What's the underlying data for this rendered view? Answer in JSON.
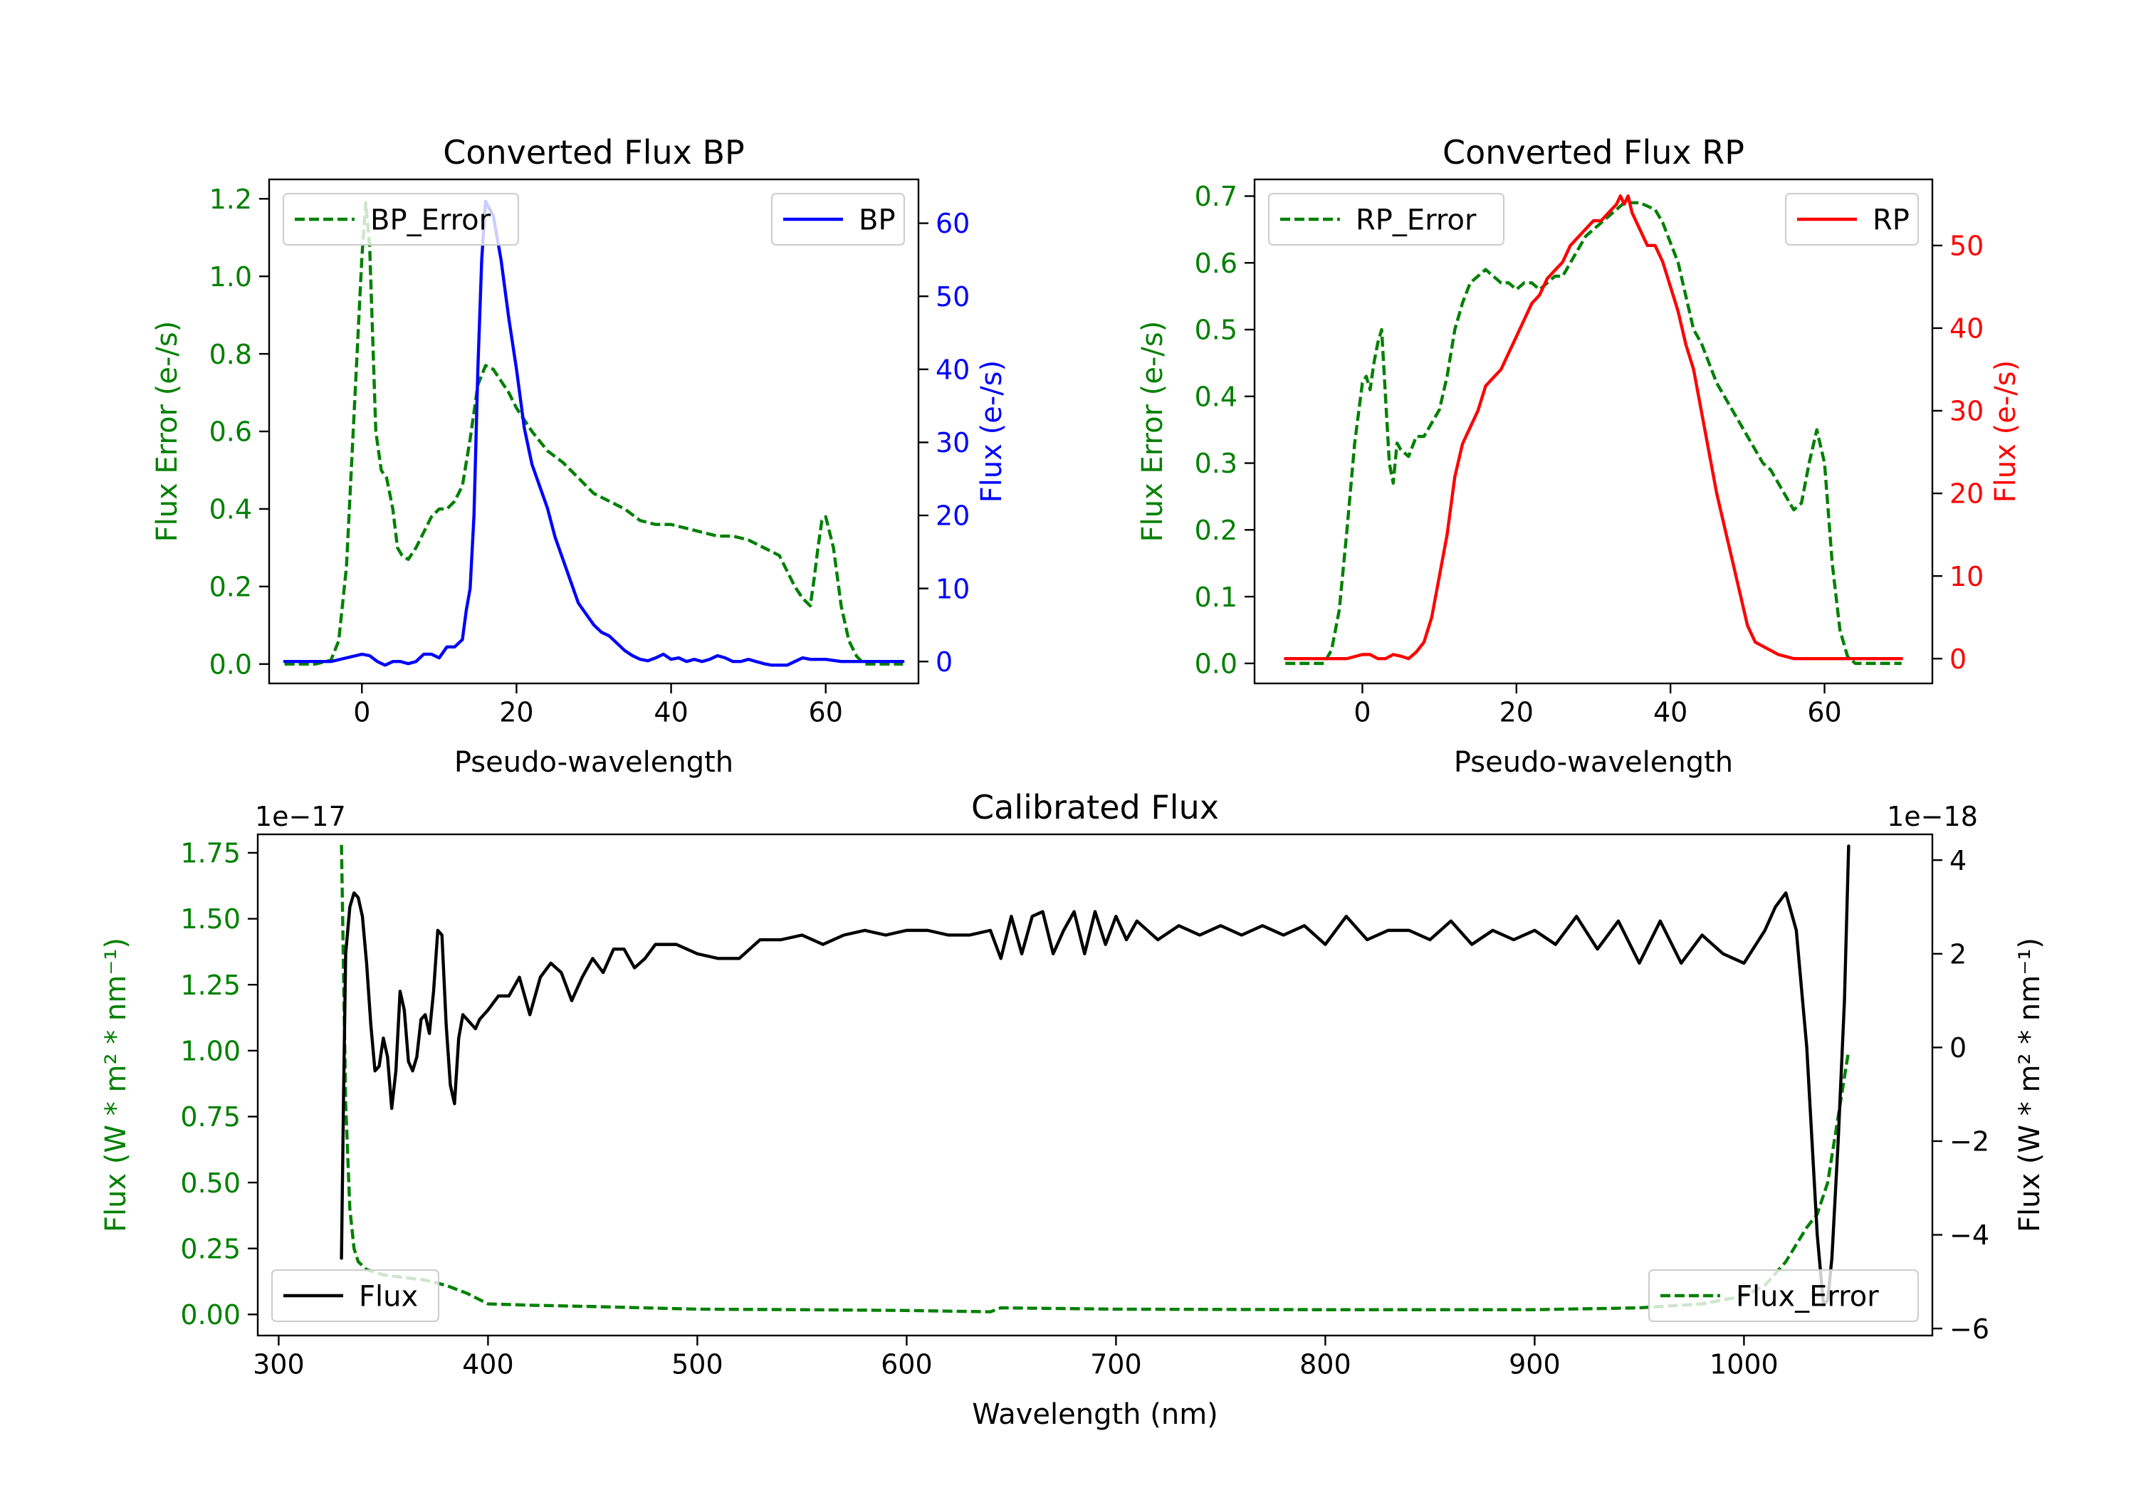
{
  "colors": {
    "error": "#008000",
    "bp": "#0000ff",
    "rp": "#ff0000",
    "flux": "#000000",
    "axis": "#000000"
  },
  "chart_data": [
    {
      "id": "bp",
      "type": "line",
      "title": "Converted Flux BP",
      "xlabel": "Pseudo-wavelength",
      "ylabel_left": "Flux Error (e-/s)",
      "ylabel_right": "Flux (e-/s)",
      "xlim": [
        -12,
        72
      ],
      "ylim_left": [
        -0.05,
        1.25
      ],
      "ylim_right": [
        -3,
        66
      ],
      "xticks": [
        0,
        20,
        40,
        60
      ],
      "xtick_labels": [
        "0",
        "20",
        "40",
        "60"
      ],
      "yticks_left": [
        0,
        0.2,
        0.4,
        0.6,
        0.8,
        1.0,
        1.2
      ],
      "ytick_labels_left": [
        "0.0",
        "0.2",
        "0.4",
        "0.6",
        "0.8",
        "1.0",
        "1.2"
      ],
      "yticks_right": [
        0,
        10,
        20,
        30,
        40,
        50,
        60
      ],
      "ytick_labels_right": [
        "0",
        "10",
        "20",
        "30",
        "40",
        "50",
        "60"
      ],
      "legend_left": "BP_Error",
      "legend_right": "BP",
      "legend_left_loc": "upper left",
      "legend_right_loc": "upper right",
      "series": [
        {
          "name": "BP_Error",
          "axis": "left",
          "style": "dashed",
          "color_key": "error",
          "x": [
            -10,
            -6,
            -4,
            -3,
            -2,
            -1,
            0,
            0.5,
            1,
            1.8,
            2.5,
            3.2,
            4,
            4.6,
            5.2,
            6,
            7,
            8,
            9,
            10,
            11,
            12,
            13,
            14,
            15,
            16,
            17,
            18,
            19,
            20,
            22,
            24,
            26,
            28,
            30,
            32,
            34,
            36,
            38,
            40,
            42,
            44,
            46,
            48,
            50,
            52,
            54,
            55,
            56,
            57,
            58,
            58.5,
            59,
            59.5,
            60,
            61,
            62,
            63,
            64,
            65,
            66,
            70
          ],
          "y": [
            0.0,
            0.0,
            0.01,
            0.06,
            0.25,
            0.65,
            1.05,
            1.19,
            1.08,
            0.6,
            0.5,
            0.48,
            0.4,
            0.3,
            0.28,
            0.27,
            0.3,
            0.34,
            0.38,
            0.4,
            0.4,
            0.42,
            0.46,
            0.58,
            0.72,
            0.77,
            0.76,
            0.73,
            0.7,
            0.66,
            0.6,
            0.55,
            0.52,
            0.48,
            0.44,
            0.42,
            0.4,
            0.37,
            0.36,
            0.36,
            0.35,
            0.34,
            0.33,
            0.33,
            0.32,
            0.3,
            0.28,
            0.24,
            0.2,
            0.17,
            0.15,
            0.22,
            0.3,
            0.37,
            0.38,
            0.3,
            0.15,
            0.06,
            0.02,
            0.0,
            0.0,
            0.0
          ]
        },
        {
          "name": "BP",
          "axis": "right",
          "style": "solid",
          "color_key": "bp",
          "x": [
            -10,
            -4,
            -2,
            0,
            1,
            2,
            3,
            4,
            5,
            6,
            7,
            8,
            9,
            10,
            11,
            12,
            13,
            13.5,
            14,
            14.5,
            15,
            15.5,
            16,
            17,
            18,
            19,
            20,
            21,
            22,
            23,
            24,
            25,
            26,
            27,
            28,
            29,
            30,
            31,
            32,
            33,
            34,
            35,
            36,
            37,
            38,
            39,
            40,
            41,
            42,
            43,
            44,
            45,
            46,
            47,
            48,
            49,
            50,
            51,
            52,
            53,
            54,
            55,
            56,
            57,
            58,
            60,
            62,
            64,
            66,
            70
          ],
          "y": [
            0,
            0,
            0.5,
            1,
            0.8,
            0,
            -0.5,
            0,
            0,
            -0.3,
            0,
            1,
            1,
            0.5,
            2,
            2,
            3,
            7,
            10,
            20,
            40,
            55,
            63,
            61,
            55,
            47,
            40,
            32,
            27,
            24,
            21,
            17,
            14,
            11,
            8,
            6.5,
            5,
            4,
            3.5,
            2.5,
            1.5,
            0.8,
            0.3,
            0.1,
            0.5,
            1,
            0.3,
            0.5,
            0,
            0.3,
            0,
            0.3,
            0.8,
            0.5,
            0,
            0,
            0.3,
            0,
            -0.3,
            -0.5,
            -0.5,
            -0.5,
            0,
            0.5,
            0.3,
            0.3,
            0,
            0,
            0,
            0
          ]
        }
      ]
    },
    {
      "id": "rp",
      "type": "line",
      "title": "Converted Flux RP",
      "xlabel": "Pseudo-wavelength",
      "ylabel_left": "Flux Error (e-/s)",
      "ylabel_right": "Flux (e-/s)",
      "xlim": [
        -14,
        74
      ],
      "ylim_left": [
        -0.03,
        0.725
      ],
      "ylim_right": [
        -3,
        58
      ],
      "xticks": [
        0,
        20,
        40,
        60
      ],
      "xtick_labels": [
        "0",
        "20",
        "40",
        "60"
      ],
      "yticks_left": [
        0,
        0.1,
        0.2,
        0.3,
        0.4,
        0.5,
        0.6,
        0.7
      ],
      "ytick_labels_left": [
        "0.0",
        "0.1",
        "0.2",
        "0.3",
        "0.4",
        "0.5",
        "0.6",
        "0.7"
      ],
      "yticks_right": [
        0,
        10,
        20,
        30,
        40,
        50
      ],
      "ytick_labels_right": [
        "0",
        "10",
        "20",
        "30",
        "40",
        "50"
      ],
      "legend_left": "RP_Error",
      "legend_right": "RP",
      "legend_left_loc": "upper left",
      "legend_right_loc": "upper right",
      "series": [
        {
          "name": "RP_Error",
          "axis": "left",
          "style": "dashed",
          "color_key": "error",
          "x": [
            -10,
            -5,
            -4,
            -3,
            -2,
            -1,
            0,
            0.5,
            1,
            1.5,
            2,
            2.5,
            3,
            3.5,
            4,
            4.5,
            5,
            6,
            7,
            8,
            9,
            10,
            11,
            12,
            13,
            14,
            15,
            16,
            17,
            18,
            19,
            20,
            21,
            22,
            23,
            24,
            25,
            26,
            27,
            28,
            29,
            30,
            31,
            32,
            33,
            34,
            35,
            36,
            37,
            38,
            39,
            40,
            41,
            42,
            43,
            44,
            45,
            46,
            47,
            48,
            49,
            50,
            51,
            52,
            53,
            54,
            55,
            56,
            57,
            58,
            59,
            60,
            61,
            62,
            63,
            64,
            70
          ],
          "y": [
            0.0,
            0.0,
            0.02,
            0.08,
            0.2,
            0.33,
            0.42,
            0.43,
            0.41,
            0.45,
            0.48,
            0.5,
            0.4,
            0.3,
            0.27,
            0.33,
            0.32,
            0.31,
            0.34,
            0.34,
            0.36,
            0.38,
            0.43,
            0.5,
            0.54,
            0.57,
            0.58,
            0.59,
            0.58,
            0.57,
            0.57,
            0.56,
            0.57,
            0.57,
            0.56,
            0.57,
            0.58,
            0.58,
            0.6,
            0.62,
            0.64,
            0.65,
            0.66,
            0.67,
            0.68,
            0.69,
            0.69,
            0.69,
            0.685,
            0.68,
            0.66,
            0.63,
            0.6,
            0.55,
            0.5,
            0.48,
            0.45,
            0.42,
            0.4,
            0.38,
            0.36,
            0.34,
            0.32,
            0.3,
            0.29,
            0.27,
            0.25,
            0.23,
            0.24,
            0.3,
            0.35,
            0.3,
            0.15,
            0.05,
            0.01,
            0.0,
            0.0
          ]
        },
        {
          "name": "RP",
          "axis": "right",
          "style": "solid",
          "color_key": "rp",
          "x": [
            -10,
            -4,
            -2,
            0,
            1,
            2,
            3,
            4,
            5,
            6,
            7,
            8,
            9,
            10,
            11,
            12,
            13,
            14,
            15,
            16,
            17,
            18,
            19,
            20,
            21,
            22,
            23,
            24,
            25,
            26,
            27,
            28,
            29,
            30,
            31,
            32,
            33,
            33.5,
            34,
            34.5,
            35,
            36,
            37,
            38,
            39,
            40,
            41,
            42,
            43,
            44,
            45,
            46,
            47,
            48,
            49,
            50,
            51,
            52,
            53,
            54,
            56,
            58,
            60,
            62,
            66,
            70
          ],
          "y": [
            0,
            0,
            0,
            0.5,
            0.5,
            0,
            0,
            0.5,
            0.3,
            0,
            0.8,
            2,
            5,
            10,
            15,
            22,
            26,
            28,
            30,
            33,
            34,
            35,
            37,
            39,
            41,
            43,
            44,
            46,
            47,
            48,
            50,
            51,
            52,
            53,
            53,
            54,
            55,
            56,
            55,
            56,
            54,
            52,
            50,
            50,
            48,
            45,
            42,
            38,
            35,
            30,
            25,
            20,
            16,
            12,
            8,
            4,
            2,
            1.5,
            1,
            0.5,
            0,
            0,
            0,
            0,
            0,
            0
          ]
        }
      ]
    },
    {
      "id": "calibrated",
      "type": "line",
      "title": "Calibrated Flux",
      "xlabel": "Wavelength (nm)",
      "ylabel_left": "Flux (W * m² * nm⁻¹)",
      "ylabel_right": "Flux (W * m² * nm⁻¹)",
      "offset_left": "1e−17",
      "offset_right": "1e−18",
      "xlim": [
        290,
        1090
      ],
      "ylim_left": [
        -0.08,
        1.82
      ],
      "ylim_right": [
        -6.15,
        4.55
      ],
      "xticks": [
        300,
        400,
        500,
        600,
        700,
        800,
        900,
        1000
      ],
      "xtick_labels": [
        "300",
        "400",
        "500",
        "600",
        "700",
        "800",
        "900",
        "1000"
      ],
      "yticks_left": [
        0,
        0.25,
        0.5,
        0.75,
        1.0,
        1.25,
        1.5,
        1.75
      ],
      "ytick_labels_left": [
        "0.00",
        "0.25",
        "0.50",
        "0.75",
        "1.00",
        "1.25",
        "1.50",
        "1.75"
      ],
      "yticks_right": [
        -6,
        -4,
        -2,
        0,
        2,
        4
      ],
      "ytick_labels_right": [
        "−6",
        "−4",
        "−2",
        "0",
        "2",
        "4"
      ],
      "legend_left": "Flux",
      "legend_right": "Flux_Error",
      "legend_left_loc": "lower left",
      "legend_right_loc": "lower right",
      "series": [
        {
          "name": "Flux_Error",
          "axis": "left",
          "style": "dashed",
          "color_key": "error",
          "x": [
            330,
            332,
            334,
            336,
            338,
            342,
            350,
            360,
            370,
            380,
            390,
            400,
            420,
            450,
            500,
            550,
            600,
            640,
            645,
            700,
            800,
            900,
            950,
            980,
            1000,
            1010,
            1020,
            1030,
            1035,
            1040,
            1045,
            1050
          ],
          "y": [
            1.78,
            0.8,
            0.4,
            0.25,
            0.2,
            0.17,
            0.15,
            0.14,
            0.13,
            0.11,
            0.08,
            0.04,
            0.035,
            0.03,
            0.02,
            0.018,
            0.015,
            0.01,
            0.025,
            0.02,
            0.018,
            0.018,
            0.025,
            0.04,
            0.07,
            0.11,
            0.2,
            0.33,
            0.38,
            0.5,
            0.75,
            1.0
          ]
        },
        {
          "name": "Flux",
          "axis": "right",
          "style": "solid",
          "color_key": "flux",
          "x": [
            330,
            331,
            332,
            333,
            334,
            336,
            338,
            340,
            342,
            344,
            346,
            348,
            350,
            352,
            354,
            356,
            358,
            360,
            362,
            364,
            366,
            368,
            370,
            372,
            374,
            376,
            378,
            380,
            382,
            384,
            386,
            388,
            390,
            392,
            394,
            396,
            398,
            400,
            405,
            410,
            415,
            420,
            425,
            430,
            435,
            440,
            445,
            450,
            455,
            460,
            465,
            470,
            475,
            480,
            490,
            500,
            510,
            520,
            530,
            540,
            550,
            560,
            570,
            580,
            590,
            600,
            610,
            620,
            630,
            640,
            645,
            650,
            655,
            660,
            665,
            670,
            675,
            680,
            685,
            690,
            695,
            700,
            705,
            710,
            720,
            730,
            740,
            750,
            760,
            770,
            780,
            790,
            800,
            810,
            820,
            830,
            840,
            850,
            860,
            870,
            880,
            890,
            900,
            910,
            920,
            930,
            940,
            950,
            960,
            970,
            980,
            990,
            1000,
            1010,
            1015,
            1020,
            1025,
            1030,
            1035,
            1038,
            1040,
            1042,
            1045,
            1048,
            1050
          ],
          "y": [
            -4.5,
            -1,
            2,
            2.5,
            3,
            3.3,
            3.2,
            2.8,
            1.8,
            0.5,
            -0.5,
            -0.4,
            0.2,
            -0.2,
            -1.3,
            -0.5,
            1.2,
            0.8,
            -0.3,
            -0.5,
            -0.2,
            0.6,
            0.7,
            0.3,
            1.2,
            2.5,
            2.4,
            0.5,
            -0.8,
            -1.2,
            0.2,
            0.7,
            0.6,
            0.5,
            0.4,
            0.6,
            0.7,
            0.8,
            1.1,
            1.1,
            1.5,
            0.7,
            1.5,
            1.8,
            1.6,
            1.0,
            1.5,
            1.9,
            1.6,
            2.1,
            2.1,
            1.7,
            1.9,
            2.2,
            2.2,
            2.0,
            1.9,
            1.9,
            2.3,
            2.3,
            2.4,
            2.2,
            2.4,
            2.5,
            2.4,
            2.5,
            2.5,
            2.4,
            2.4,
            2.5,
            1.9,
            2.8,
            2.0,
            2.8,
            2.9,
            2.0,
            2.5,
            2.9,
            2.0,
            2.9,
            2.2,
            2.8,
            2.3,
            2.7,
            2.3,
            2.6,
            2.4,
            2.6,
            2.4,
            2.6,
            2.4,
            2.6,
            2.2,
            2.8,
            2.3,
            2.5,
            2.5,
            2.3,
            2.7,
            2.2,
            2.5,
            2.3,
            2.5,
            2.2,
            2.8,
            2.1,
            2.7,
            1.8,
            2.7,
            1.8,
            2.4,
            2.0,
            1.8,
            2.5,
            3.0,
            3.3,
            2.5,
            0,
            -4.0,
            -5.5,
            -5.4,
            -4.5,
            -2.0,
            1.0,
            4.3
          ]
        }
      ]
    }
  ]
}
